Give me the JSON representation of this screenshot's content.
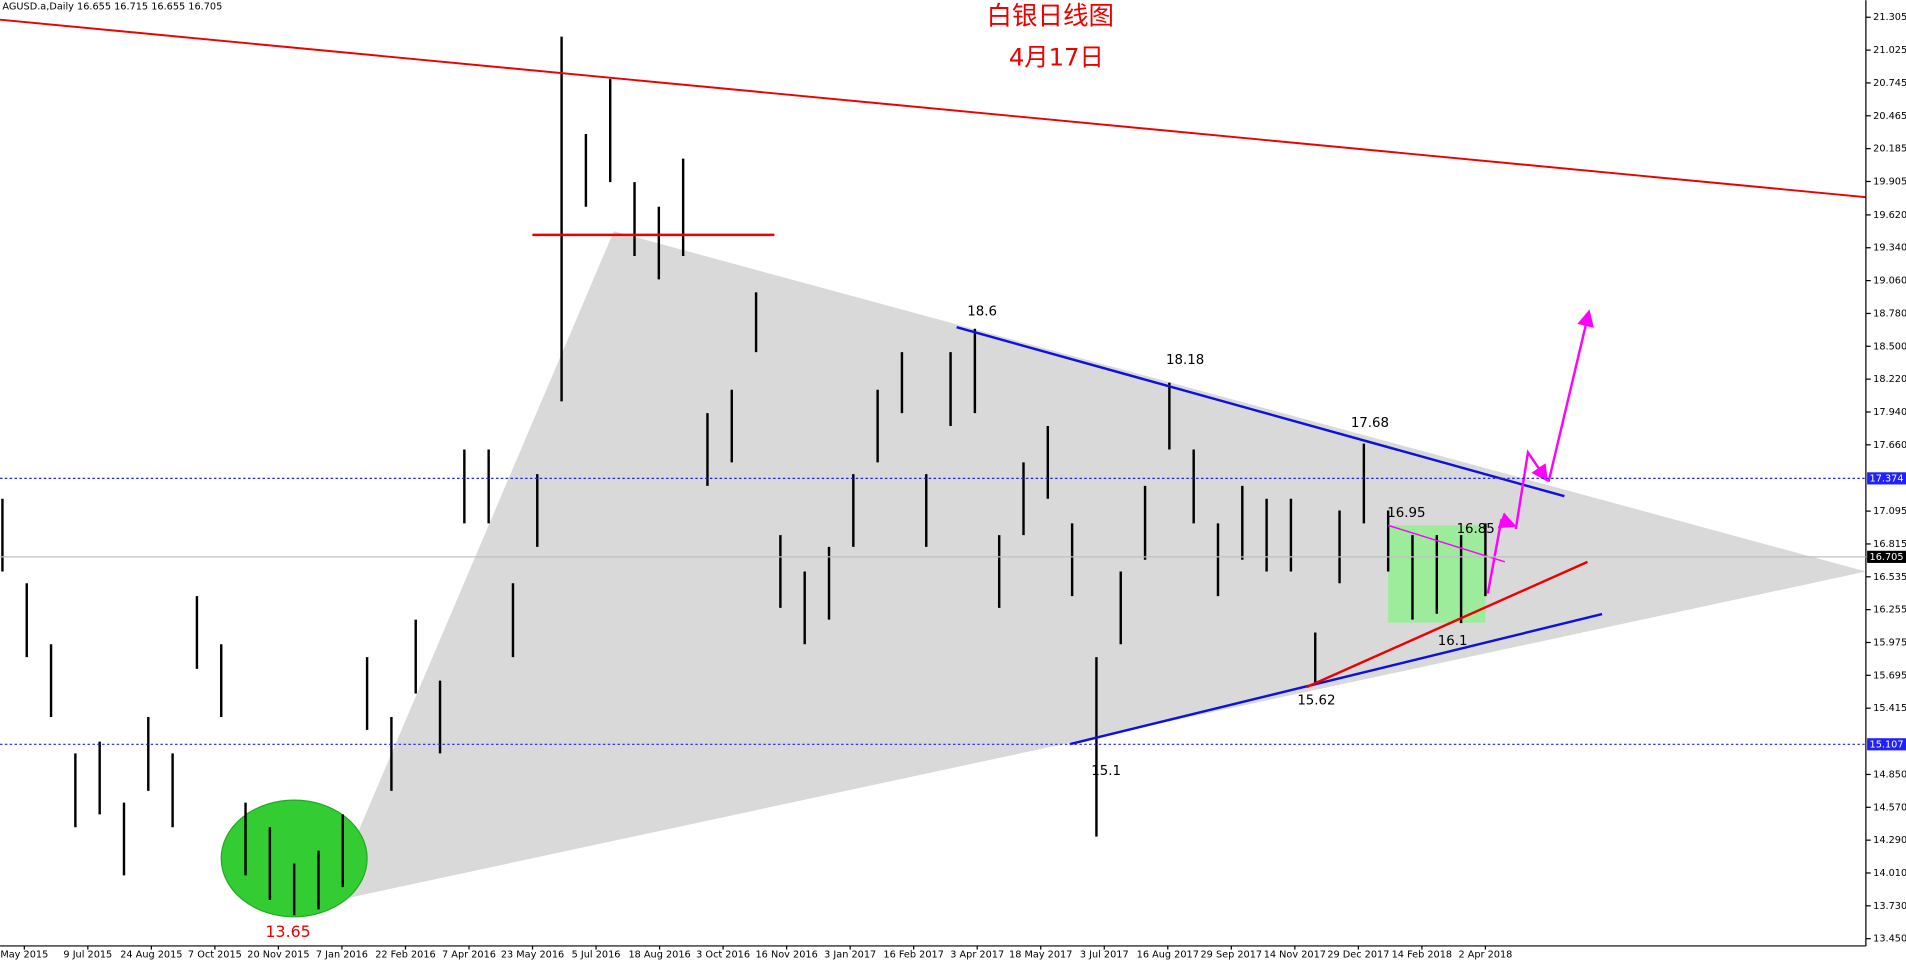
{
  "chart_data": {
    "type": "hilo",
    "symbol_info": "AGUSD.a,Daily  16.655 16.715 16.655 16.705",
    "title": "白银日线图",
    "subtitle": "4月17日",
    "categories": [
      "May 2015",
      "9 Jul 2015",
      "24 Aug 2015",
      "7 Oct 2015",
      "20 Nov 2015",
      "7 Jan 2016",
      "22 Feb 2016",
      "7 Apr 2016",
      "23 May 2016",
      "5 Jul 2016",
      "18 Aug 2016",
      "3 Oct 2016",
      "16 Nov 2016",
      "3 Jan 2017",
      "16 Feb 2017",
      "3 Apr 2017",
      "18 May 2017",
      "3 Jul 2017",
      "16 Aug 2017",
      "29 Sep 2017",
      "14 Nov 2017",
      "29 Dec 2017",
      "14 Feb 2018",
      "2 Apr 2018"
    ],
    "high": [
      17.2,
      16.48,
      15.96,
      15.03,
      15.13,
      14.61,
      15.34,
      15.03,
      16.37,
      15.96,
      14.61,
      14.4,
      14.09,
      14.2,
      14.51,
      15.85,
      15.34,
      16.17,
      15.65,
      17.62,
      17.62,
      16.48,
      17.41,
      21.14,
      20.31,
      20.78,
      19.9,
      19.69,
      20.1,
      17.93,
      18.13,
      18.96,
      16.89,
      16.58,
      16.79,
      17.41,
      18.13,
      18.45,
      17.41,
      18.45,
      18.65,
      16.89,
      17.51,
      17.82,
      16.99,
      15.85,
      16.58,
      17.31,
      18.19,
      17.62,
      16.99,
      17.31,
      17.2,
      17.2,
      16.06,
      17.1,
      17.67,
      17.1,
      16.89,
      16.89,
      16.89,
      16.99
    ],
    "low": [
      16.58,
      15.85,
      15.34,
      14.4,
      14.51,
      13.99,
      14.71,
      14.4,
      15.75,
      15.34,
      13.99,
      13.78,
      13.65,
      13.7,
      13.89,
      15.23,
      14.71,
      15.54,
      15.03,
      16.99,
      16.99,
      15.85,
      16.79,
      18.03,
      19.69,
      19.9,
      19.27,
      19.07,
      19.27,
      17.31,
      17.51,
      18.45,
      16.27,
      15.96,
      16.17,
      16.79,
      17.51,
      17.93,
      16.79,
      17.82,
      17.93,
      16.27,
      16.89,
      17.2,
      16.37,
      14.32,
      15.96,
      16.68,
      17.62,
      16.99,
      16.37,
      16.68,
      16.58,
      16.58,
      15.62,
      16.48,
      16.99,
      16.58,
      16.17,
      16.22,
      16.14,
      16.37
    ],
    "color": "#000000",
    "ylim": [
      13.388,
      21.45
    ],
    "yticks": [
      {
        "value": 21.305,
        "label": "21.305"
      },
      {
        "value": 21.025,
        "label": "21.025"
      },
      20.745,
      20.465,
      20.185,
      19.905,
      {
        "value": 19.62,
        "label": "19.620"
      },
      {
        "value": 19.34,
        "label": "19.340"
      },
      {
        "value": 19.06,
        "label": "19.060"
      },
      {
        "value": 18.78,
        "label": "18.780"
      },
      {
        "value": 18.5,
        "label": "18.500"
      },
      {
        "value": 18.22,
        "label": "18.220"
      },
      {
        "value": 17.94,
        "label": "17.940"
      },
      {
        "value": 17.66,
        "label": "17.660"
      },
      17.095,
      16.815,
      16.535,
      16.255,
      15.975,
      15.695,
      15.415,
      {
        "value": 14.85,
        "label": "14.850"
      },
      {
        "value": 14.57,
        "label": "14.570"
      },
      {
        "value": 14.29,
        "label": "14.290"
      },
      {
        "value": 14.01,
        "label": "14.010"
      },
      {
        "value": 13.73,
        "label": "13.730"
      },
      {
        "value": 13.45,
        "label": "13.450"
      }
    ],
    "levels": [
      17.374,
      15.107
    ],
    "current_price": 16.705,
    "annotations": [
      "18.6",
      "18.18",
      "17.68",
      "16.95",
      "16.85",
      "16.1",
      "15.62",
      "15.1",
      "13.65"
    ]
  }
}
